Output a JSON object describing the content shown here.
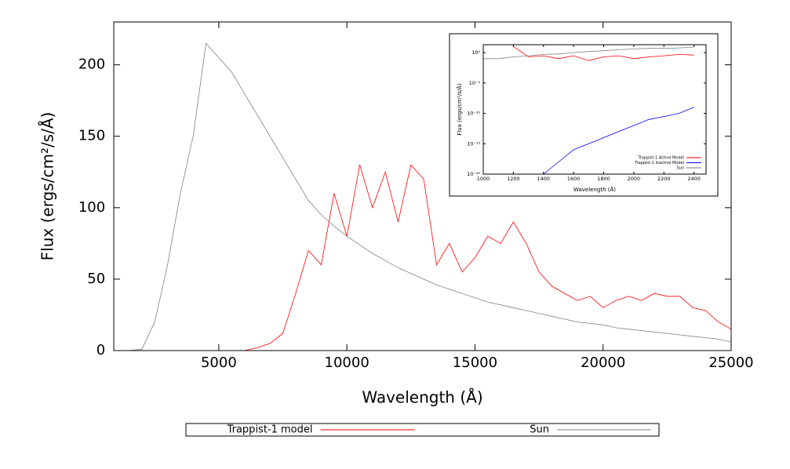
{
  "chart_data": [
    {
      "type": "line",
      "xlabel": "Wavelength (Å)",
      "ylabel": "Flux (ergs/cm²/s/Å)",
      "x": [
        1000,
        1500,
        2000,
        2500,
        3000,
        3500,
        4000,
        4500,
        5000,
        5500,
        6000,
        6500,
        7000,
        7500,
        8000,
        8500,
        9000,
        9500,
        10000,
        10500,
        11000,
        11500,
        12000,
        12500,
        13000,
        13500,
        14000,
        14500,
        15000,
        15500,
        16000,
        16500,
        17000,
        17500,
        18000,
        18500,
        19000,
        19500,
        20000,
        20500,
        21000,
        21500,
        22000,
        22500,
        23000,
        23500,
        24000,
        24500,
        25000
      ],
      "series": [
        {
          "name": "Trappist-1 model",
          "color": "#ff0000",
          "values": [
            0,
            0,
            0,
            0,
            0,
            0,
            0,
            0,
            0,
            0,
            0,
            2,
            5,
            12,
            40,
            70,
            60,
            110,
            80,
            130,
            100,
            125,
            90,
            130,
            120,
            60,
            75,
            55,
            65,
            80,
            75,
            90,
            75,
            55,
            45,
            40,
            35,
            38,
            30,
            35,
            38,
            35,
            40,
            38,
            38,
            30,
            28,
            20,
            15
          ]
        },
        {
          "name": "Sun",
          "color": "#808080",
          "values": [
            0,
            0,
            1,
            20,
            60,
            110,
            150,
            215,
            205,
            195,
            180,
            165,
            150,
            135,
            120,
            105,
            95,
            87,
            80,
            74,
            68,
            63,
            58,
            54,
            50,
            46,
            43,
            40,
            37,
            34,
            32,
            30,
            28,
            26,
            24,
            22,
            20,
            19,
            18,
            16,
            15,
            14,
            13,
            12,
            11,
            10,
            9,
            8,
            6
          ]
        }
      ],
      "xlim": [
        900,
        25000
      ],
      "ylim": [
        0,
        230
      ],
      "xticks": [
        5000,
        10000,
        15000,
        20000,
        25000
      ],
      "yticks": [
        0,
        50,
        100,
        150,
        200
      ],
      "log_y": false,
      "legend": "bottom"
    },
    {
      "type": "line",
      "xlabel": "Wavelength (Å)",
      "ylabel": "Flux (ergs/cm²/s/Å)",
      "x": [
        1000,
        1100,
        1200,
        1300,
        1400,
        1500,
        1600,
        1700,
        1800,
        1900,
        2000,
        2100,
        2200,
        2300,
        2400
      ],
      "series": [
        {
          "name": "Trappist-1 Active Model",
          "color": "#ff0000",
          "values": [
            null,
            null,
            10,
            0.2,
            0.3,
            0.1,
            0.3,
            0.05,
            0.2,
            0.3,
            0.1,
            0.2,
            0.3,
            0.5,
            0.4
          ]
        },
        {
          "name": "Trappist-1 Inactive Model",
          "color": "#0000ff",
          "values": [
            null,
            null,
            null,
            null,
            1e-20,
            1e-18,
            1e-16,
            1e-15,
            1e-14,
            1e-13,
            1e-12,
            1e-11,
            3e-11,
            1e-10,
            1e-09
          ]
        },
        {
          "name": "Sun",
          "color": "#808080",
          "values": [
            0.1,
            0.1,
            0.2,
            0.3,
            0.5,
            0.6,
            1,
            1.5,
            2,
            3,
            4,
            5,
            5,
            6,
            8
          ]
        }
      ],
      "xlim": [
        1000,
        2480
      ],
      "ylim": [
        1e-20,
        20
      ],
      "xticks": [
        1000,
        1200,
        1400,
        1600,
        1800,
        2000,
        2200,
        2400
      ],
      "yticks": [
        {
          "value": 1,
          "label": "10⁰"
        },
        {
          "value": 1e-05,
          "label": "10⁻⁵"
        },
        {
          "value": 1e-10,
          "label": "10⁻¹⁰"
        },
        {
          "value": 1e-15,
          "label": "10⁻¹⁵"
        },
        {
          "value": 1e-20,
          "label": "10⁻²⁰"
        }
      ],
      "log_y": true,
      "legend": "lower right"
    }
  ]
}
